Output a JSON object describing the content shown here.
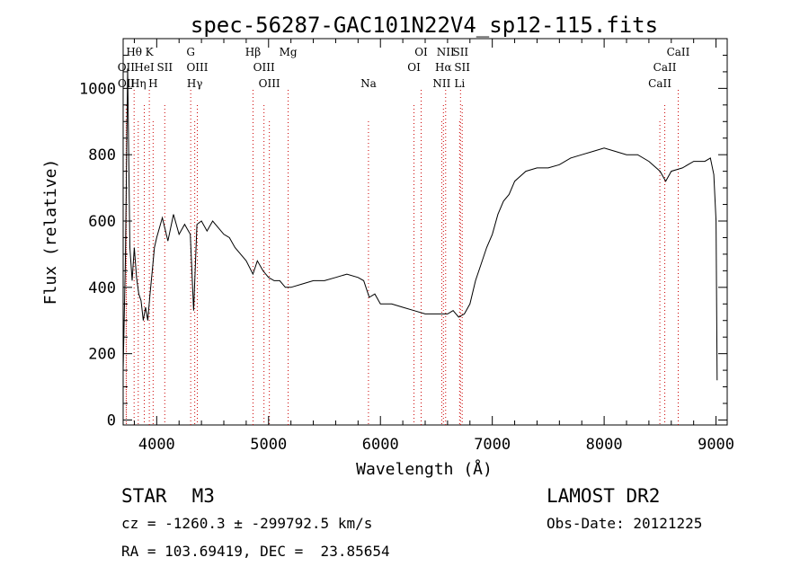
{
  "chart_data": {
    "type": "line",
    "title": "spec-56287-GAC101N22V4_sp12-115.fits",
    "xlabel": "Wavelength (Å)",
    "ylabel": "Flux (relative)",
    "xlim": [
      3700,
      9100
    ],
    "ylim": [
      -15,
      1150
    ],
    "xticks": [
      4000,
      5000,
      6000,
      7000,
      8000,
      9000
    ],
    "xtick_labels": [
      "4000",
      "5000",
      "6000",
      "7000",
      "8000",
      "9000"
    ],
    "yticks": [
      0,
      200,
      400,
      600,
      800,
      1000
    ],
    "ytick_labels": [
      "0",
      "200",
      "400",
      "600",
      "800",
      "1000"
    ],
    "grid": false,
    "line_color": "#000000",
    "marker_color": "#cc0000",
    "series": [
      {
        "x": [
          3700,
          3720,
          3740,
          3760,
          3780,
          3800,
          3820,
          3840,
          3860,
          3880,
          3900,
          3920,
          3940,
          3960,
          3980,
          4000,
          4050,
          4100,
          4150,
          4200,
          4250,
          4300,
          4330,
          4360,
          4400,
          4450,
          4500,
          4550,
          4600,
          4650,
          4700,
          4750,
          4800,
          4860,
          4900,
          4950,
          5000,
          5050,
          5100,
          5150,
          5200,
          5300,
          5400,
          5500,
          5600,
          5700,
          5800,
          5850,
          5900,
          5950,
          6000,
          6100,
          6200,
          6300,
          6400,
          6500,
          6550,
          6600,
          6650,
          6700,
          6750,
          6800,
          6850,
          6900,
          6950,
          7000,
          7050,
          7100,
          7150,
          7200,
          7300,
          7400,
          7500,
          7600,
          7700,
          7800,
          7900,
          8000,
          8100,
          8200,
          8300,
          8400,
          8500,
          8550,
          8600,
          8700,
          8800,
          8900,
          8950,
          8980,
          9000,
          9010
        ],
        "y": [
          150,
          480,
          1060,
          520,
          420,
          520,
          430,
          380,
          360,
          300,
          340,
          300,
          380,
          450,
          520,
          550,
          610,
          540,
          620,
          560,
          590,
          560,
          330,
          590,
          600,
          570,
          600,
          580,
          560,
          550,
          520,
          500,
          480,
          440,
          480,
          450,
          430,
          420,
          420,
          400,
          400,
          410,
          420,
          420,
          430,
          440,
          430,
          420,
          370,
          380,
          350,
          350,
          340,
          330,
          320,
          320,
          320,
          320,
          330,
          310,
          320,
          350,
          420,
          470,
          520,
          560,
          620,
          660,
          680,
          720,
          750,
          760,
          760,
          770,
          790,
          800,
          810,
          820,
          810,
          800,
          800,
          780,
          750,
          720,
          750,
          760,
          780,
          780,
          790,
          740,
          600,
          120
        ]
      }
    ],
    "line_markers": [
      {
        "label": "Hθ",
        "x": 3798,
        "row": 0
      },
      {
        "label": "K",
        "x": 3934,
        "row": 0
      },
      {
        "label": "G",
        "x": 4304,
        "row": 0
      },
      {
        "label": "Hβ",
        "x": 4861,
        "row": 0
      },
      {
        "label": "Mg",
        "x": 5175,
        "row": 0
      },
      {
        "label": "OI",
        "x": 6364,
        "row": 0
      },
      {
        "label": "NII",
        "x": 6583,
        "row": 0
      },
      {
        "label": "SII",
        "x": 6716,
        "row": 0
      },
      {
        "label": "CaII",
        "x": 8662,
        "row": 0
      },
      {
        "label": "OII",
        "x": 3727,
        "row": 1
      },
      {
        "label": "HeI",
        "x": 3889,
        "row": 1
      },
      {
        "label": "SII",
        "x": 4072,
        "row": 1
      },
      {
        "label": "OIII",
        "x": 4363,
        "row": 1
      },
      {
        "label": "OIII",
        "x": 4959,
        "row": 1
      },
      {
        "label": "OI",
        "x": 6300,
        "row": 1
      },
      {
        "label": "Hα",
        "x": 6563,
        "row": 1
      },
      {
        "label": "SII",
        "x": 6731,
        "row": 1
      },
      {
        "label": "CaII",
        "x": 8542,
        "row": 1
      },
      {
        "label": "OII",
        "x": 3729,
        "row": 2
      },
      {
        "label": "Hη",
        "x": 3835,
        "row": 2
      },
      {
        "label": "H",
        "x": 3968,
        "row": 2
      },
      {
        "label": "Hγ",
        "x": 4340,
        "row": 2
      },
      {
        "label": "OIII",
        "x": 5007,
        "row": 2
      },
      {
        "label": "Na",
        "x": 5893,
        "row": 2
      },
      {
        "label": "NII",
        "x": 6548,
        "row": 2
      },
      {
        "label": "Li",
        "x": 6708,
        "row": 2
      },
      {
        "label": "CaII",
        "x": 8498,
        "row": 2
      }
    ]
  },
  "info": {
    "object_class": "STAR",
    "subclass": "M3",
    "survey": "LAMOST DR2",
    "cz": "cz = -1260.3 ± -299792.5 km/s",
    "obs_date": "Obs-Date: 20121225",
    "radec": "RA = 103.69419, DEC =  23.85654"
  }
}
